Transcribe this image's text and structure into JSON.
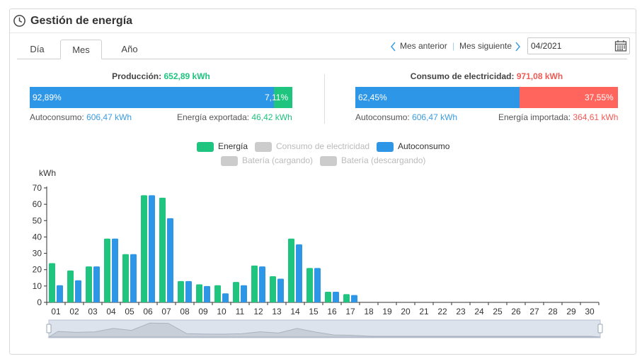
{
  "header": {
    "title": "Gestión de energía"
  },
  "tabs": [
    {
      "label": "Día"
    },
    {
      "label": "Mes",
      "active": true
    },
    {
      "label": "Año"
    }
  ],
  "nav": {
    "prev": "Mes anterior",
    "next": "Mes siguiente",
    "separator": "|",
    "date": "04/2021"
  },
  "production": {
    "label": "Producción:",
    "value": "652,89 kWh",
    "self_pct": "92,89%",
    "export_pct": "7,11%",
    "self_fraction": 0.9289,
    "self_label": "Autoconsumo:",
    "self_value": "606,47 kWh",
    "export_label": "Energía exportada:",
    "export_value": "46,42 kWh"
  },
  "consumption": {
    "label": "Consumo de electricidad:",
    "value": "971,08 kWh",
    "self_pct": "62,45%",
    "import_pct": "37,55%",
    "self_fraction": 0.6245,
    "self_label": "Autoconsumo:",
    "self_value": "606,47 kWh",
    "import_label": "Energía importada:",
    "import_value": "364,61 kWh"
  },
  "colors": {
    "energy": "#1fc47f",
    "self": "#2e96e6",
    "import": "#ff645d",
    "disabled": "#cccccc"
  },
  "legend": [
    {
      "label": "Energía",
      "color": "#1fc47f",
      "enabled": true
    },
    {
      "label": "Consumo de electricidad",
      "color": "#cccccc",
      "enabled": false
    },
    {
      "label": "Autoconsumo",
      "color": "#2e96e6",
      "enabled": true
    },
    {
      "label": "Batería (cargando)",
      "color": "#cccccc",
      "enabled": false
    },
    {
      "label": "Batería (descargando)",
      "color": "#cccccc",
      "enabled": false
    }
  ],
  "chart_data": {
    "type": "bar",
    "ylabel": "kWh",
    "ylim": [
      0,
      70
    ],
    "yticks": [
      0,
      10,
      20,
      30,
      40,
      50,
      60,
      70
    ],
    "categories": [
      "01",
      "02",
      "03",
      "04",
      "05",
      "06",
      "07",
      "08",
      "09",
      "10",
      "11",
      "12",
      "13",
      "14",
      "15",
      "16",
      "17",
      "18",
      "19",
      "20",
      "21",
      "22",
      "23",
      "24",
      "25",
      "26",
      "27",
      "28",
      "29",
      "30"
    ],
    "series": [
      {
        "name": "Energía",
        "values": [
          24,
          19.5,
          22,
          39,
          29.5,
          65.5,
          64,
          13,
          11,
          10.5,
          12.5,
          22.5,
          16,
          39,
          21,
          6.5,
          5,
          null,
          null,
          null,
          null,
          null,
          null,
          null,
          null,
          null,
          null,
          null,
          null,
          null
        ]
      },
      {
        "name": "Autoconsumo",
        "values": [
          10.5,
          13.5,
          22,
          39,
          29.5,
          65.5,
          51.5,
          13,
          10,
          5.5,
          10.5,
          22,
          14.5,
          35.5,
          21,
          6.5,
          4.5,
          null,
          null,
          null,
          null,
          null,
          null,
          null,
          null,
          null,
          null,
          null,
          null,
          null
        ]
      }
    ],
    "grid": false,
    "legend_position": "top-center"
  }
}
